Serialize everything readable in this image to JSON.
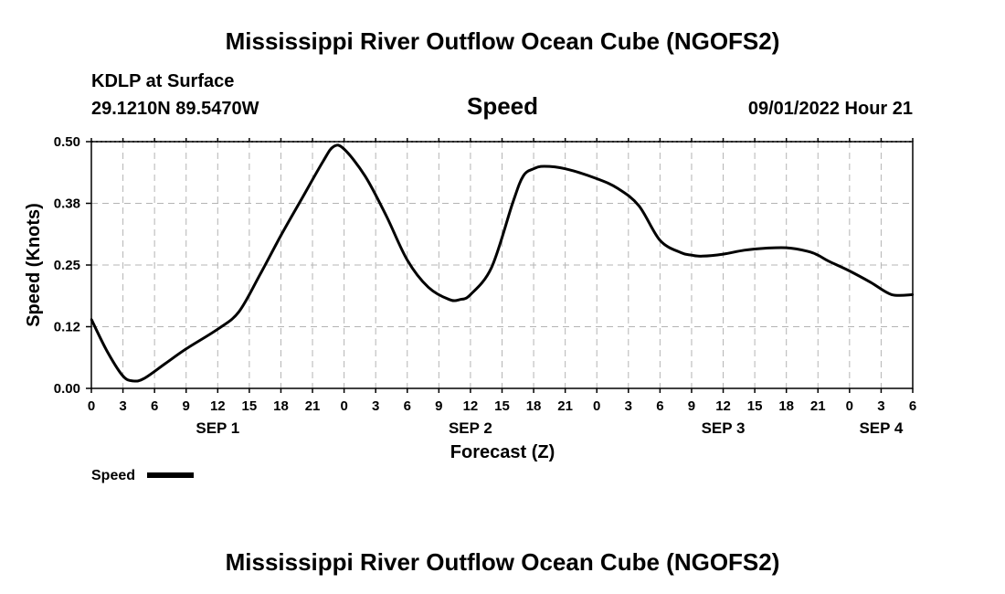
{
  "page": {
    "title_top": "Mississippi River Outflow Ocean Cube (NGOFS2)",
    "title_bottom": "Mississippi River Outflow Ocean Cube (NGOFS2)",
    "station": "KDLP at Surface",
    "coords": "29.1210N  89.5470W",
    "variable": "Speed",
    "datetime": "09/01/2022 Hour 21"
  },
  "chart_data": {
    "type": "line",
    "title": "Speed",
    "xlabel": "Forecast (Z)",
    "ylabel": "Speed (Knots)",
    "x_unit": "hours since SEP 1 00Z",
    "xlim": [
      0,
      78
    ],
    "ylim": [
      0,
      0.5
    ],
    "grid": true,
    "y_ticks": [
      "0.00",
      "0.12",
      "0.25",
      "0.38",
      "0.50"
    ],
    "y_tick_values": [
      0,
      0.125,
      0.25,
      0.375,
      0.5
    ],
    "x_tick_labels": [
      "0",
      "3",
      "6",
      "9",
      "12",
      "15",
      "18",
      "21",
      "0",
      "3",
      "6",
      "9",
      "12",
      "15",
      "18",
      "21",
      "0",
      "3",
      "6",
      "9",
      "12",
      "15",
      "18",
      "21",
      "0",
      "3",
      "6"
    ],
    "day_labels": [
      {
        "label": "SEP 1",
        "x": 12
      },
      {
        "label": "SEP 2",
        "x": 36
      },
      {
        "label": "SEP 3",
        "x": 60
      },
      {
        "label": "SEP 4",
        "x": 75
      }
    ],
    "legend": {
      "label": "Speed",
      "position": "bottom-left"
    },
    "series": [
      {
        "name": "Speed",
        "color": "#000000",
        "x": [
          0,
          1.5,
          3,
          4,
          5,
          7,
          9,
          12,
          14,
          16,
          18,
          20,
          22,
          23,
          24,
          26,
          28,
          30,
          32,
          34,
          35,
          36,
          38,
          40,
          41,
          42,
          43,
          45,
          48,
          50,
          52,
          54,
          56,
          57,
          58,
          60,
          62,
          64,
          66,
          68,
          69,
          70,
          72,
          74,
          76,
          78
        ],
        "values": [
          0.14,
          0.075,
          0.025,
          0.015,
          0.02,
          0.05,
          0.08,
          0.12,
          0.155,
          0.23,
          0.31,
          0.385,
          0.46,
          0.49,
          0.485,
          0.43,
          0.35,
          0.26,
          0.205,
          0.18,
          0.18,
          0.19,
          0.245,
          0.375,
          0.43,
          0.445,
          0.45,
          0.445,
          0.425,
          0.405,
          0.37,
          0.3,
          0.275,
          0.27,
          0.268,
          0.272,
          0.28,
          0.284,
          0.285,
          0.278,
          0.27,
          0.258,
          0.238,
          0.215,
          0.19,
          0.19
        ]
      }
    ]
  }
}
